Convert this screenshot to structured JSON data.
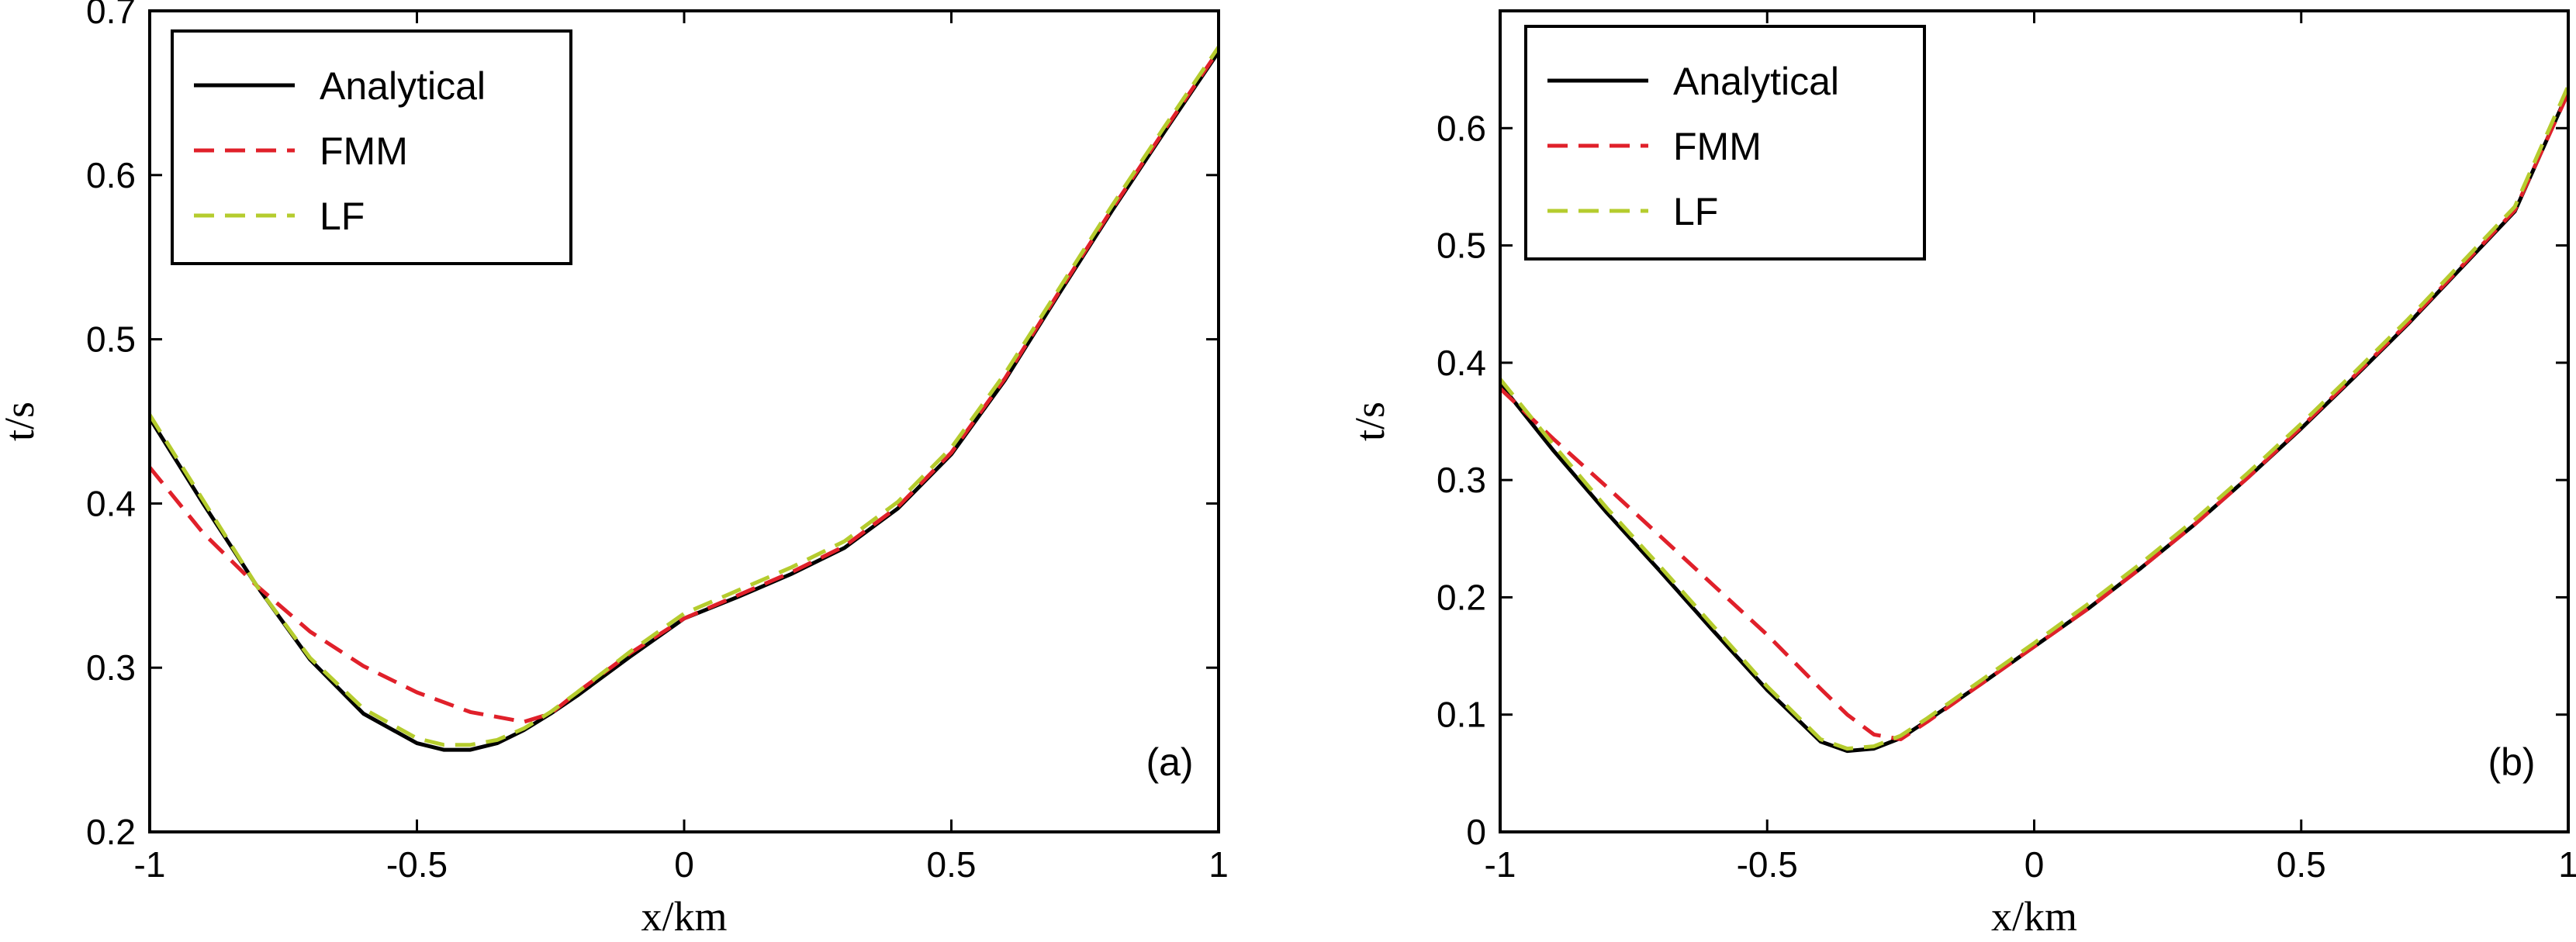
{
  "chart_data": [
    {
      "type": "line",
      "panel_label": "(a)",
      "xlabel": "x/km",
      "ylabel": "t/s",
      "xlim": [
        -1,
        1
      ],
      "ylim": [
        0.2,
        0.7
      ],
      "xticks": [
        -1,
        -0.5,
        0,
        0.5,
        1
      ],
      "xtick_labels": [
        "-1",
        "-0.5",
        "0",
        "0.5",
        "1"
      ],
      "yticks": [
        0.2,
        0.3,
        0.4,
        0.5,
        0.6,
        0.7
      ],
      "ytick_labels": [
        "0.2",
        "0.3",
        "0.4",
        "0.5",
        "0.6",
        "0.7"
      ],
      "legend_position": "top-left",
      "series": [
        {
          "name": "Analytical",
          "color": "#000000",
          "dash": "solid",
          "x": [
            -1,
            -0.9,
            -0.8,
            -0.7,
            -0.6,
            -0.5,
            -0.45,
            -0.4,
            -0.35,
            -0.3,
            -0.25,
            -0.2,
            -0.1,
            0,
            0.1,
            0.2,
            0.3,
            0.4,
            0.5,
            0.6,
            0.7,
            0.8,
            0.9,
            1
          ],
          "y": [
            0.452,
            0.4,
            0.35,
            0.305,
            0.272,
            0.254,
            0.25,
            0.25,
            0.254,
            0.262,
            0.272,
            0.283,
            0.307,
            0.33,
            0.343,
            0.357,
            0.373,
            0.397,
            0.43,
            0.475,
            0.527,
            0.578,
            0.627,
            0.675
          ]
        },
        {
          "name": "FMM",
          "color": "#e0202a",
          "dash": "dashed",
          "x": [
            -1,
            -0.9,
            -0.8,
            -0.7,
            -0.6,
            -0.5,
            -0.45,
            -0.4,
            -0.35,
            -0.3,
            -0.25,
            -0.2,
            -0.1,
            0,
            0.1,
            0.2,
            0.3,
            0.4,
            0.5,
            0.6,
            0.7,
            0.8,
            0.9,
            1
          ],
          "y": [
            0.422,
            0.382,
            0.35,
            0.322,
            0.301,
            0.285,
            0.279,
            0.273,
            0.27,
            0.267,
            0.272,
            0.285,
            0.309,
            0.33,
            0.344,
            0.358,
            0.374,
            0.398,
            0.431,
            0.476,
            0.528,
            0.579,
            0.628,
            0.676
          ]
        },
        {
          "name": "LF",
          "color": "#b5cc2e",
          "dash": "dashed",
          "x": [
            -1,
            -0.9,
            -0.8,
            -0.7,
            -0.6,
            -0.5,
            -0.45,
            -0.4,
            -0.35,
            -0.3,
            -0.25,
            -0.2,
            -0.1,
            0,
            0.1,
            0.2,
            0.3,
            0.4,
            0.5,
            0.6,
            0.7,
            0.8,
            0.9,
            1
          ],
          "y": [
            0.454,
            0.402,
            0.35,
            0.306,
            0.275,
            0.257,
            0.253,
            0.253,
            0.256,
            0.263,
            0.273,
            0.285,
            0.31,
            0.333,
            0.347,
            0.361,
            0.377,
            0.401,
            0.434,
            0.479,
            0.53,
            0.581,
            0.63,
            0.678
          ]
        }
      ]
    },
    {
      "type": "line",
      "panel_label": "(b)",
      "xlabel": "x/km",
      "ylabel": "t/s",
      "xlim": [
        -1,
        1
      ],
      "ylim": [
        0,
        0.7
      ],
      "xticks": [
        -1,
        -0.5,
        0,
        0.5,
        1
      ],
      "xtick_labels": [
        "-1",
        "-0.5",
        "0",
        "0.5",
        "1"
      ],
      "yticks": [
        0,
        0.1,
        0.2,
        0.3,
        0.4,
        0.5,
        0.6
      ],
      "ytick_labels": [
        "0",
        "0.1",
        "0.2",
        "0.3",
        "0.4",
        "0.5",
        "0.6"
      ],
      "legend_position": "top-left",
      "series": [
        {
          "name": "Analytical",
          "color": "#000000",
          "dash": "solid",
          "x": [
            -1,
            -0.9,
            -0.8,
            -0.7,
            -0.6,
            -0.5,
            -0.4,
            -0.35,
            -0.3,
            -0.25,
            -0.2,
            -0.1,
            0,
            0.1,
            0.2,
            0.3,
            0.4,
            0.5,
            0.6,
            0.7,
            0.8,
            0.9,
            1
          ],
          "y": [
            0.382,
            0.325,
            0.272,
            0.222,
            0.171,
            0.121,
            0.077,
            0.069,
            0.071,
            0.08,
            0.095,
            0.126,
            0.158,
            0.19,
            0.225,
            0.262,
            0.302,
            0.344,
            0.388,
            0.433,
            0.481,
            0.529,
            0.631
          ]
        },
        {
          "name": "FMM",
          "color": "#e0202a",
          "dash": "dashed",
          "x": [
            -1,
            -0.9,
            -0.8,
            -0.7,
            -0.6,
            -0.5,
            -0.4,
            -0.35,
            -0.3,
            -0.25,
            -0.2,
            -0.1,
            0,
            0.1,
            0.2,
            0.3,
            0.4,
            0.5,
            0.6,
            0.7,
            0.8,
            0.9,
            1
          ],
          "y": [
            0.378,
            0.335,
            0.294,
            0.252,
            0.21,
            0.168,
            0.122,
            0.1,
            0.083,
            0.079,
            0.094,
            0.126,
            0.158,
            0.19,
            0.225,
            0.262,
            0.302,
            0.345,
            0.389,
            0.434,
            0.482,
            0.53,
            0.63
          ]
        },
        {
          "name": "LF",
          "color": "#b5cc2e",
          "dash": "dashed",
          "x": [
            -1,
            -0.9,
            -0.8,
            -0.7,
            -0.6,
            -0.5,
            -0.4,
            -0.35,
            -0.3,
            -0.25,
            -0.2,
            -0.1,
            0,
            0.1,
            0.2,
            0.3,
            0.4,
            0.5,
            0.6,
            0.7,
            0.8,
            0.9,
            1
          ],
          "y": [
            0.386,
            0.33,
            0.276,
            0.226,
            0.175,
            0.124,
            0.079,
            0.071,
            0.073,
            0.082,
            0.097,
            0.129,
            0.161,
            0.194,
            0.229,
            0.266,
            0.306,
            0.348,
            0.392,
            0.437,
            0.485,
            0.533,
            0.636
          ]
        }
      ]
    }
  ]
}
